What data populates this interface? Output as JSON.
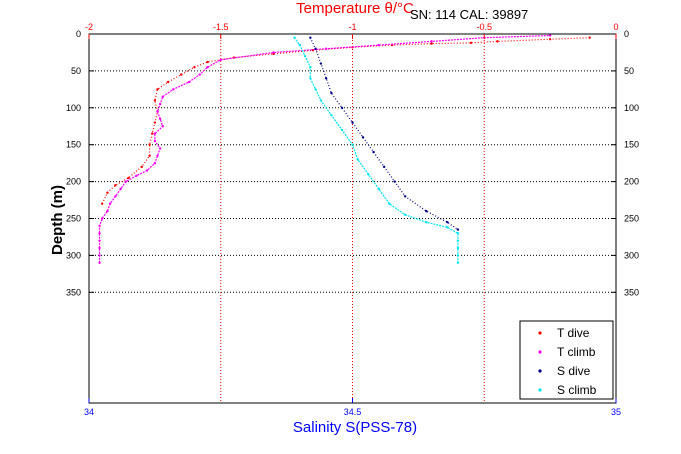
{
  "chart_data": {
    "type": "scatter",
    "header_text": "SN: 114  CAL: 39897",
    "ylabel": "Depth (m)",
    "top_axis": {
      "label": "Temperature θ/°C",
      "range": [
        -2,
        0
      ],
      "ticks": [
        {
          "v": -2,
          "t": "-2"
        },
        {
          "v": -1.5,
          "t": "-1.5"
        },
        {
          "v": -1,
          "t": "-1"
        },
        {
          "v": -0.5,
          "t": "-0.5"
        },
        {
          "v": 0,
          "t": "0"
        }
      ],
      "color": "#ff0000"
    },
    "bottom_axis": {
      "label": "Salinity S(PSS-78)",
      "range": [
        34,
        35
      ],
      "ticks": [
        {
          "v": 34,
          "t": "34"
        },
        {
          "v": 34.5,
          "t": "34.5"
        },
        {
          "v": 35,
          "t": "35"
        }
      ],
      "color": "#0000ff"
    },
    "y_axis": {
      "range": [
        0,
        500
      ],
      "reversed": true,
      "ticks": [
        {
          "v": 0,
          "t": "0"
        },
        {
          "v": 50,
          "t": "50"
        },
        {
          "v": 100,
          "t": "100"
        },
        {
          "v": 150,
          "t": "150"
        },
        {
          "v": 200,
          "t": "200"
        },
        {
          "v": 250,
          "t": "250"
        },
        {
          "v": 300,
          "t": "300"
        },
        {
          "v": 350,
          "t": "350"
        }
      ]
    },
    "grid": true,
    "legend_position": "bottom-right",
    "series": [
      {
        "name": "T dive",
        "axis": "temperature",
        "color": "#ff0000",
        "points": [
          [
            -0.1,
            5
          ],
          [
            -0.25,
            7
          ],
          [
            -0.45,
            10
          ],
          [
            -0.55,
            12
          ],
          [
            -0.7,
            13
          ],
          [
            -0.85,
            15
          ],
          [
            -1.0,
            18
          ],
          [
            -1.15,
            22
          ],
          [
            -1.3,
            27
          ],
          [
            -1.45,
            32
          ],
          [
            -1.55,
            38
          ],
          [
            -1.6,
            45
          ],
          [
            -1.65,
            55
          ],
          [
            -1.7,
            65
          ],
          [
            -1.74,
            75
          ],
          [
            -1.75,
            90
          ],
          [
            -1.74,
            105
          ],
          [
            -1.75,
            120
          ],
          [
            -1.76,
            135
          ],
          [
            -1.77,
            150
          ],
          [
            -1.77,
            165
          ],
          [
            -1.8,
            180
          ],
          [
            -1.85,
            195
          ],
          [
            -1.9,
            205
          ],
          [
            -1.93,
            215
          ],
          [
            -1.95,
            230
          ]
        ]
      },
      {
        "name": "T climb",
        "axis": "temperature",
        "color": "#ff00ff",
        "points": [
          [
            -1.96,
            310
          ],
          [
            -1.96,
            300
          ],
          [
            -1.96,
            290
          ],
          [
            -1.96,
            280
          ],
          [
            -1.96,
            270
          ],
          [
            -1.96,
            260
          ],
          [
            -1.95,
            250
          ],
          [
            -1.93,
            240
          ],
          [
            -1.92,
            230
          ],
          [
            -1.9,
            220
          ],
          [
            -1.88,
            210
          ],
          [
            -1.86,
            200
          ],
          [
            -1.82,
            192
          ],
          [
            -1.78,
            185
          ],
          [
            -1.75,
            175
          ],
          [
            -1.74,
            165
          ],
          [
            -1.73,
            155
          ],
          [
            -1.75,
            145
          ],
          [
            -1.75,
            135
          ],
          [
            -1.72,
            125
          ],
          [
            -1.73,
            115
          ],
          [
            -1.74,
            105
          ],
          [
            -1.73,
            95
          ],
          [
            -1.72,
            85
          ],
          [
            -1.68,
            75
          ],
          [
            -1.62,
            65
          ],
          [
            -1.58,
            55
          ],
          [
            -1.55,
            45
          ],
          [
            -1.5,
            35
          ],
          [
            -1.3,
            25
          ],
          [
            -1.1,
            20
          ],
          [
            -0.9,
            15
          ],
          [
            -0.7,
            10
          ],
          [
            -0.5,
            5
          ],
          [
            -0.25,
            2
          ]
        ]
      },
      {
        "name": "S dive",
        "axis": "salinity",
        "color": "#00008b",
        "points": [
          [
            34.42,
            5
          ],
          [
            34.43,
            20
          ],
          [
            34.44,
            40
          ],
          [
            34.45,
            60
          ],
          [
            34.46,
            80
          ],
          [
            34.48,
            100
          ],
          [
            34.5,
            120
          ],
          [
            34.52,
            140
          ],
          [
            34.54,
            160
          ],
          [
            34.56,
            180
          ],
          [
            34.58,
            200
          ],
          [
            34.6,
            220
          ],
          [
            34.64,
            240
          ],
          [
            34.68,
            255
          ],
          [
            34.7,
            265
          ]
        ]
      },
      {
        "name": "S climb",
        "axis": "salinity",
        "color": "#00e5ee",
        "points": [
          [
            34.7,
            310
          ],
          [
            34.7,
            300
          ],
          [
            34.7,
            290
          ],
          [
            34.7,
            280
          ],
          [
            34.7,
            270
          ],
          [
            34.68,
            262
          ],
          [
            34.64,
            255
          ],
          [
            34.6,
            245
          ],
          [
            34.57,
            230
          ],
          [
            34.55,
            210
          ],
          [
            34.53,
            190
          ],
          [
            34.51,
            170
          ],
          [
            34.5,
            150
          ],
          [
            34.48,
            130
          ],
          [
            34.46,
            110
          ],
          [
            34.44,
            90
          ],
          [
            34.43,
            75
          ],
          [
            34.42,
            60
          ],
          [
            34.42,
            45
          ],
          [
            34.41,
            30
          ],
          [
            34.4,
            15
          ],
          [
            34.39,
            5
          ]
        ]
      }
    ]
  }
}
